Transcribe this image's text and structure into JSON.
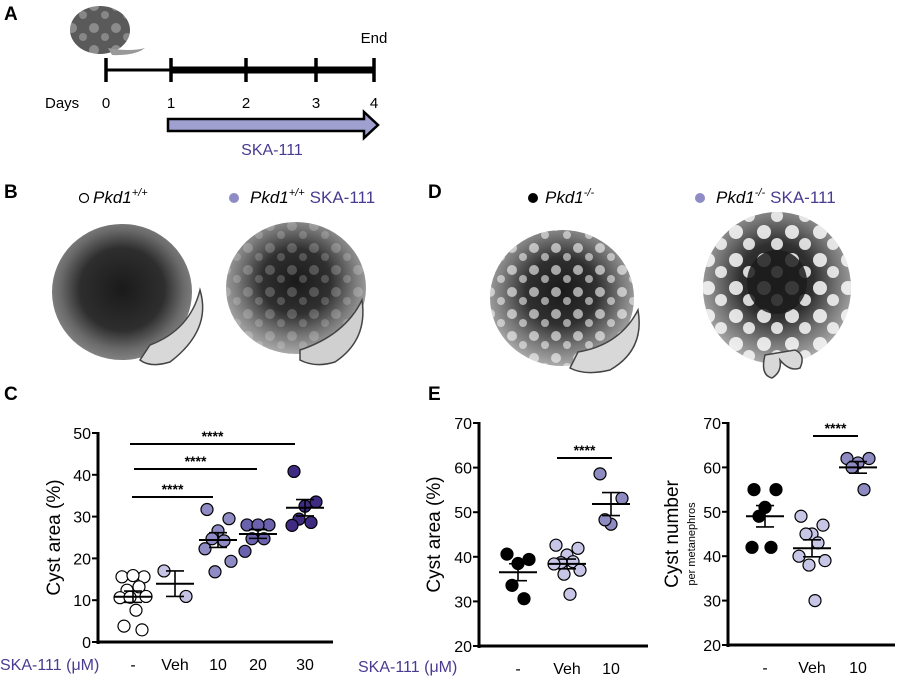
{
  "panels": {
    "a": "A",
    "b": "B",
    "c": "C",
    "d": "D",
    "e": "E"
  },
  "timeline": {
    "days_label": "Days",
    "days": [
      "0",
      "1",
      "2",
      "3",
      "4"
    ],
    "end_label": "End",
    "treatment_label": "SKA-111",
    "treatment_color": "#9f9fd0"
  },
  "panel_b": {
    "legend": [
      {
        "gene": "Pkd1",
        "genotype": "+/+",
        "treatment": "",
        "marker": "open-circle"
      },
      {
        "gene": "Pkd1",
        "genotype": "+/+",
        "treatment": "SKA-111",
        "marker": "purple-circle"
      }
    ]
  },
  "panel_d": {
    "legend": [
      {
        "gene": "Pkd1",
        "genotype": "-/-",
        "treatment": "",
        "marker": "black-circle"
      },
      {
        "gene": "Pkd1",
        "genotype": "-/-",
        "treatment": "SKA-111",
        "marker": "purple-circle"
      }
    ]
  },
  "colors": {
    "accent_text": "#4a3a90"
  },
  "chart_data": [
    {
      "panel": "C",
      "type": "scatter",
      "ylabel": "Cyst area (%)",
      "xlabel": "SKA-111 (μM)",
      "ylim": [
        0,
        50
      ],
      "yticks": [
        0,
        10,
        20,
        30,
        40,
        50
      ],
      "categories": [
        "-",
        "Veh",
        "10",
        "20",
        "30"
      ],
      "colors": [
        "#ffffff",
        "#c6c4e4",
        "#8f8bc4",
        "#6a62ad",
        "#3f2b82"
      ],
      "values": [
        [
          15.6,
          15.6,
          15.9,
          12.4,
          13.2,
          10.6,
          10.9,
          10.7,
          7.6,
          3.8,
          2.9
        ],
        [
          17.0,
          10.9
        ],
        [
          31.7,
          29.5,
          26.6,
          24.7,
          24.2,
          22.3,
          19.3,
          16.8
        ],
        [
          28.0,
          28.0,
          28.0,
          24.7,
          24.7,
          21.7
        ],
        [
          40.8,
          33.5,
          32.5,
          29.4,
          28.6,
          27.9
        ]
      ],
      "significance": [
        {
          "from": "-",
          "to": "30",
          "label": "****"
        },
        {
          "from": "-",
          "to": "20",
          "label": "****"
        },
        {
          "from": "-",
          "to": "10",
          "label": "****"
        }
      ],
      "error_bars": "mean ± SEM"
    },
    {
      "panel": "E",
      "type": "scatter",
      "ylabel": "Cyst area (%)",
      "xlabel": "SKA-111 (μM)",
      "ylim": [
        20,
        70
      ],
      "yticks": [
        20,
        30,
        40,
        50,
        60,
        70
      ],
      "categories": [
        "-",
        "Veh",
        "10"
      ],
      "colors": [
        "#000000",
        "#c8c6e6",
        "#8e8bc3"
      ],
      "values": [
        [
          40.6,
          39.4,
          38.5,
          33.6,
          30.6
        ],
        [
          42.6,
          41.9,
          40.4,
          38.7,
          38.9,
          38.4,
          37.0,
          36.1,
          31.6
        ],
        [
          58.6,
          53.1,
          47.3,
          48.3
        ]
      ],
      "significance": [
        {
          "from": "Veh",
          "to": "10",
          "label": "****"
        }
      ],
      "error_bars": "mean ± SEM"
    },
    {
      "panel": "E",
      "type": "scatter",
      "ylabel": "Cyst number",
      "ylabel_sub": "per metanephros",
      "ylim": [
        20,
        70
      ],
      "yticks": [
        20,
        30,
        40,
        50,
        60,
        70
      ],
      "categories": [
        "-",
        "Veh",
        "10"
      ],
      "colors": [
        "#000000",
        "#c8c6e6",
        "#8e8bc3"
      ],
      "values": [
        [
          55,
          55,
          51,
          49,
          42,
          42
        ],
        [
          49,
          47,
          45,
          45,
          43,
          40,
          39,
          38,
          30
        ],
        [
          62,
          62,
          61,
          60,
          55
        ]
      ],
      "significance": [
        {
          "from": "Veh",
          "to": "10",
          "label": "****"
        }
      ],
      "error_bars": "mean ± SEM"
    }
  ]
}
